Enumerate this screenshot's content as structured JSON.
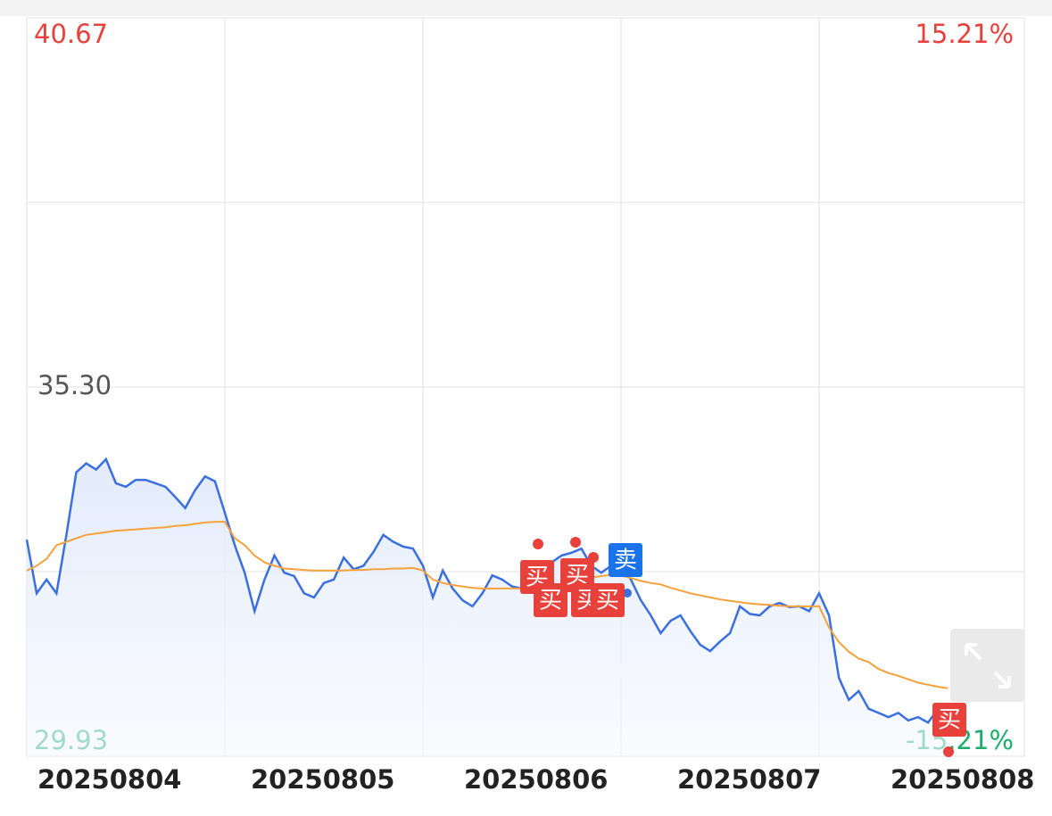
{
  "chart_data": {
    "type": "line",
    "categories": [
      "20250804",
      "20250805",
      "20250806",
      "20250807",
      "20250808"
    ],
    "ylim": [
      29.93,
      40.67
    ],
    "yticks": [
      40.67,
      {
        "value": 35.3,
        "label": "35.30"
      },
      29.93
    ],
    "y2lim": [
      -15.21,
      15.21
    ],
    "y2ticks": [
      {
        "value": 15.21,
        "label": "15.21%"
      },
      {
        "value": -15.21,
        "label": "-15.21%"
      }
    ],
    "grid": true,
    "series": [
      {
        "color": "#3a6fe0",
        "values": [
          [
            33.08,
            32.3,
            32.5,
            32.3,
            33.15,
            34.06,
            34.19,
            34.1,
            34.25,
            33.9,
            33.85,
            33.95,
            33.95,
            33.9,
            33.85,
            33.7,
            33.54,
            33.8,
            34.0,
            33.93
          ],
          [
            33.47,
            33.0,
            32.6,
            32.04,
            32.5,
            32.85,
            32.6,
            32.55,
            32.3,
            32.24,
            32.45,
            32.5,
            32.82,
            32.65,
            32.7,
            32.9,
            33.15,
            33.05,
            32.98,
            32.95
          ],
          [
            32.7,
            32.24,
            32.63,
            32.37,
            32.2,
            32.11,
            32.3,
            32.56,
            32.5,
            32.4,
            32.37,
            32.4,
            32.56,
            32.75,
            32.85,
            32.89,
            32.95,
            32.7,
            32.6,
            32.7
          ],
          [
            32.76,
            32.5,
            32.2,
            31.98,
            31.72,
            31.9,
            31.98,
            31.75,
            31.55,
            31.46,
            31.6,
            31.72,
            32.11,
            32.0,
            31.98,
            32.11,
            32.16,
            32.1,
            32.11,
            32.04
          ],
          [
            32.3,
            31.98,
            31.07,
            30.75,
            30.88,
            30.62,
            30.56,
            30.5,
            30.56,
            30.45,
            30.5,
            30.42,
            30.62,
            30.5,
            null,
            null,
            null,
            null,
            null,
            null
          ]
        ]
      },
      {
        "color": "#f5a23c",
        "values": [
          [
            32.63,
            32.7,
            32.8,
            33.0,
            33.05,
            33.1,
            33.15,
            33.17,
            33.19,
            33.21,
            33.22,
            33.23,
            33.24,
            33.25,
            33.26,
            33.28,
            33.29,
            33.31,
            33.33,
            33.34
          ],
          [
            33.34,
            33.1,
            33.0,
            32.85,
            32.75,
            32.7,
            32.66,
            32.65,
            32.64,
            32.63,
            32.63,
            32.63,
            32.63,
            32.64,
            32.64,
            32.65,
            32.65,
            32.66,
            32.66,
            32.67
          ],
          [
            32.63,
            32.5,
            32.45,
            32.42,
            32.4,
            32.38,
            32.37,
            32.37,
            32.37,
            32.37,
            32.37,
            32.38,
            32.4,
            32.42,
            32.44,
            32.46,
            32.5,
            32.53,
            32.55,
            32.57
          ],
          [
            32.56,
            32.52,
            32.48,
            32.45,
            32.43,
            32.38,
            32.34,
            32.3,
            32.27,
            32.24,
            32.21,
            32.19,
            32.17,
            32.15,
            32.14,
            32.13,
            32.12,
            32.11,
            32.11,
            32.11
          ],
          [
            32.11,
            31.8,
            31.59,
            31.45,
            31.35,
            31.3,
            31.2,
            31.14,
            31.1,
            31.05,
            31.0,
            30.97,
            30.94,
            30.92,
            null,
            null,
            null,
            null,
            null,
            null
          ]
        ]
      }
    ],
    "annotations": [
      "买",
      "买",
      "买",
      "买",
      "买",
      "卖",
      "买"
    ]
  }
}
